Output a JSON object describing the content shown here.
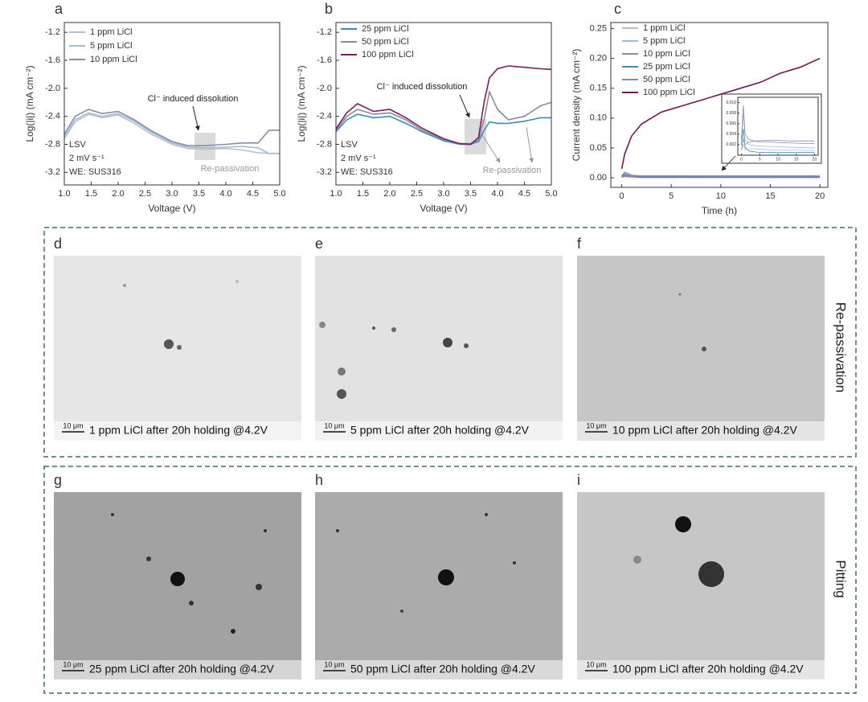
{
  "chart_data": [
    {
      "type": "line",
      "label": "a",
      "xlabel": "Voltage (V)",
      "ylabel": "Log(|i|) (mA cm⁻²)",
      "xlim": [
        1,
        5
      ],
      "xticks": [
        {
          "value": 1,
          "label": "1.0"
        },
        1.5,
        {
          "value": 2,
          "label": "2.0"
        },
        2.5,
        {
          "value": 3,
          "label": "3.0"
        },
        3.5,
        {
          "value": 4,
          "label": "4.0"
        },
        4.5,
        {
          "value": 5,
          "label": "5.0"
        }
      ],
      "ylim": [
        -3.38,
        -1.06
      ],
      "yticks": [
        -3.2,
        -2.8,
        -2.4,
        {
          "value": -2,
          "label": "-2.0"
        },
        -1.6,
        -1.2
      ],
      "annotations": [
        "Cl⁻ induced dissolution",
        "Re-passivation"
      ],
      "notes": [
        "LSV",
        "2 mV s⁻¹",
        "WE: SUS316"
      ],
      "series": [
        {
          "name": "1 ppm LiCl",
          "color": "#b8c2cc",
          "x": [
            1,
            1.2,
            1.45,
            1.7,
            2,
            2.3,
            2.6,
            3,
            3.3,
            3.6,
            4,
            4.3,
            4.6,
            4.8,
            5
          ],
          "values": [
            -2.72,
            -2.48,
            -2.37,
            -2.42,
            -2.38,
            -2.5,
            -2.65,
            -2.8,
            -2.86,
            -2.87,
            -2.86,
            -2.88,
            -2.92,
            -2.93,
            -2.93
          ]
        },
        {
          "name": "5 ppm LiCl",
          "color": "#9fbde0",
          "x": [
            1,
            1.2,
            1.45,
            1.7,
            2,
            2.3,
            2.6,
            3,
            3.3,
            3.6,
            4,
            4.3,
            4.6,
            4.8,
            5
          ],
          "values": [
            -2.7,
            -2.45,
            -2.35,
            -2.4,
            -2.36,
            -2.47,
            -2.62,
            -2.78,
            -2.84,
            -2.85,
            -2.84,
            -2.83,
            -2.85,
            -2.93,
            -2.93
          ]
        },
        {
          "name": "10 ppm LiCl",
          "color": "#8a8ca6",
          "x": [
            1,
            1.2,
            1.45,
            1.7,
            2,
            2.3,
            2.6,
            3,
            3.3,
            3.6,
            4,
            4.3,
            4.6,
            4.8,
            5
          ],
          "values": [
            -2.66,
            -2.4,
            -2.3,
            -2.36,
            -2.33,
            -2.45,
            -2.6,
            -2.76,
            -2.82,
            -2.82,
            -2.8,
            -2.78,
            -2.78,
            -2.6,
            -2.6
          ]
        }
      ]
    },
    {
      "type": "line",
      "label": "b",
      "xlabel": "Voltage (V)",
      "ylabel": "Log(|i|) (mA cm⁻²)",
      "xlim": [
        1,
        5
      ],
      "xticks": [
        {
          "value": 1,
          "label": "1.0"
        },
        1.5,
        {
          "value": 2,
          "label": "2.0"
        },
        2.5,
        {
          "value": 3,
          "label": "3.0"
        },
        3.5,
        {
          "value": 4,
          "label": "4.0"
        },
        4.5,
        {
          "value": 5,
          "label": "5.0"
        }
      ],
      "ylim": [
        -3.38,
        -1.06
      ],
      "yticks": [
        -3.2,
        -2.8,
        -2.4,
        {
          "value": -2,
          "label": "-2.0"
        },
        -1.6,
        -1.2
      ],
      "annotations": [
        "Cl⁻ induced dissolution",
        "Re-passivation"
      ],
      "notes": [
        "LSV",
        "2 mV s⁻¹",
        "WE: SUS316"
      ],
      "series": [
        {
          "name": "25 ppm LiCl",
          "color": "#3a8db0",
          "x": [
            1,
            1.2,
            1.4,
            1.7,
            2,
            2.3,
            2.6,
            3,
            3.3,
            3.5,
            3.65,
            3.75,
            3.85,
            4,
            4.2,
            4.5,
            4.8,
            5
          ],
          "values": [
            -2.62,
            -2.45,
            -2.37,
            -2.42,
            -2.4,
            -2.5,
            -2.62,
            -2.75,
            -2.8,
            -2.8,
            -2.76,
            -2.6,
            -2.48,
            -2.5,
            -2.5,
            -2.47,
            -2.42,
            -2.42
          ]
        },
        {
          "name": "50 ppm LiCl",
          "color": "#8d86a8",
          "x": [
            1,
            1.2,
            1.4,
            1.7,
            2,
            2.3,
            2.6,
            3,
            3.3,
            3.5,
            3.65,
            3.75,
            3.85,
            4,
            4.2,
            4.5,
            4.8,
            5
          ],
          "values": [
            -2.6,
            -2.4,
            -2.3,
            -2.37,
            -2.35,
            -2.45,
            -2.6,
            -2.73,
            -2.79,
            -2.79,
            -2.74,
            -2.45,
            -2.05,
            -2.3,
            -2.45,
            -2.4,
            -2.25,
            -2.2
          ]
        },
        {
          "name": "100 ppm LiCl",
          "color": "#7a1f5c",
          "x": [
            1,
            1.2,
            1.4,
            1.7,
            2,
            2.3,
            2.6,
            3,
            3.3,
            3.5,
            3.65,
            3.75,
            3.85,
            4,
            4.2,
            4.5,
            4.8,
            5
          ],
          "values": [
            -2.58,
            -2.35,
            -2.22,
            -2.33,
            -2.3,
            -2.42,
            -2.57,
            -2.72,
            -2.79,
            -2.8,
            -2.7,
            -2.2,
            -1.85,
            -1.72,
            -1.68,
            -1.7,
            -1.72,
            -1.73
          ]
        }
      ]
    },
    {
      "type": "line",
      "label": "c",
      "xlabel": "Time (h)",
      "ylabel": "Current density (mA cm⁻²)",
      "xlim": [
        -1.1,
        20.8
      ],
      "xticks": [
        0,
        5,
        10,
        15,
        20
      ],
      "ylim": [
        -0.016,
        0.26
      ],
      "yticks": [
        {
          "value": 0,
          "label": "0.00"
        },
        0.05,
        {
          "value": 0.1,
          "label": "0.10"
        },
        0.15,
        {
          "value": 0.2,
          "label": "0.20"
        },
        0.25
      ],
      "series": [
        {
          "name": "1 ppm LiCl",
          "color": "#b8c2cc",
          "x": [
            0,
            0.3,
            1,
            2,
            5,
            10,
            15,
            20
          ],
          "values": [
            0.001,
            0.002,
            0.001,
            0.001,
            0.001,
            0.001,
            0.001,
            0.001
          ]
        },
        {
          "name": "5 ppm LiCl",
          "color": "#9fbde0",
          "x": [
            0,
            0.3,
            1,
            2,
            5,
            10,
            15,
            20
          ],
          "values": [
            0.002,
            0.008,
            0.003,
            0.002,
            0.002,
            0.002,
            0.002,
            0.001
          ]
        },
        {
          "name": "10 ppm LiCl",
          "color": "#8a8ca6",
          "x": [
            0,
            0.3,
            1,
            2,
            5,
            10,
            15,
            20
          ],
          "values": [
            0.003,
            0.009,
            0.004,
            0.003,
            0.003,
            0.002,
            0.002,
            0.002
          ]
        },
        {
          "name": "25 ppm LiCl",
          "color": "#3a8db0",
          "x": [
            0,
            0.3,
            1,
            2,
            5,
            10,
            15,
            20
          ],
          "values": [
            0.002,
            0.005,
            0.002,
            0.001,
            0.001,
            0.001,
            0.001,
            0.001
          ]
        },
        {
          "name": "50 ppm LiCl",
          "color": "#8d86a8",
          "x": [
            0,
            0.3,
            1,
            2,
            5,
            10,
            15,
            20
          ],
          "values": [
            0.001,
            0.003,
            0.002,
            0.003,
            0.003,
            0.003,
            0.003,
            0.003
          ]
        },
        {
          "name": "100 ppm LiCl",
          "color": "#6e1a55",
          "x": [
            0,
            0.3,
            1,
            2,
            3,
            4,
            5,
            6,
            8,
            10,
            12,
            14,
            16,
            18,
            20
          ],
          "values": [
            0.015,
            0.04,
            0.07,
            0.09,
            0.1,
            0.11,
            0.115,
            0.12,
            0.13,
            0.14,
            0.15,
            0.16,
            0.175,
            0.185,
            0.2
          ]
        }
      ]
    },
    {
      "type": "line",
      "xlim": [
        -1,
        21
      ],
      "xticks": [
        0,
        5,
        10,
        15,
        20
      ],
      "ylim": [
        0,
        0.011
      ],
      "yticks": [
        0.002,
        0.004,
        0.006,
        0.008,
        {
          "value": 0.01,
          "label": "0.010"
        }
      ],
      "series": [
        {
          "color": "#b8c2cc",
          "x": [
            0,
            0.5,
            1,
            2,
            4,
            6,
            8,
            10,
            14,
            18,
            20
          ],
          "values": [
            0.001,
            0.002,
            0.001,
            0.0012,
            0.0012,
            0.0011,
            0.001,
            0.001,
            0.001,
            0.0009,
            0.0009
          ]
        },
        {
          "color": "#9fbde0",
          "x": [
            0,
            0.5,
            1,
            2,
            4,
            6,
            8,
            10,
            14,
            18,
            20
          ],
          "values": [
            0.002,
            0.008,
            0.003,
            0.002,
            0.0018,
            0.0017,
            0.0016,
            0.0016,
            0.0015,
            0.0014,
            0.0014
          ]
        },
        {
          "color": "#8a8ca6",
          "x": [
            0,
            0.5,
            1,
            2,
            4,
            6,
            8,
            10,
            14,
            18,
            20
          ],
          "values": [
            0.003,
            0.0095,
            0.004,
            0.003,
            0.0026,
            0.0025,
            0.0025,
            0.0024,
            0.0023,
            0.0022,
            0.0022
          ]
        },
        {
          "color": "#3a8db0",
          "x": [
            0,
            0.5,
            1,
            2,
            4,
            6,
            8,
            10,
            14,
            18,
            20
          ],
          "values": [
            0.002,
            0.005,
            0.0015,
            0.0008,
            0.0006,
            0.0005,
            0.0005,
            0.0005,
            0.0005,
            0.0005,
            0.0005
          ]
        },
        {
          "color": "#8d86a8",
          "x": [
            0,
            0.5,
            1,
            2,
            4,
            6,
            8,
            10,
            14,
            18,
            20
          ],
          "values": [
            0.001,
            0.003,
            0.002,
            0.0025,
            0.0027,
            0.0028,
            0.0028,
            0.0028,
            0.0027,
            0.0027,
            0.0027
          ]
        }
      ]
    }
  ],
  "panels": [
    {
      "letter": "d",
      "scale": "10 μm",
      "caption": "1 ppm LiCl after 20h holding @4.2V"
    },
    {
      "letter": "e",
      "scale": "10 μm",
      "caption": "5 ppm LiCl after 20h holding @4.2V"
    },
    {
      "letter": "f",
      "scale": "10 μm",
      "caption": "10 ppm LiCl after 20h holding @4.2V"
    },
    {
      "letter": "g",
      "scale": "10 μm",
      "caption": "25 ppm LiCl after 20h holding @4.2V"
    },
    {
      "letter": "h",
      "scale": "10 μm",
      "caption": "50 ppm LiCl after 20h holding @4.2V"
    },
    {
      "letter": "i",
      "scale": "10 μm",
      "caption": "100 ppm LiCl after 20h holding @4.2V"
    }
  ],
  "groups": [
    "Re-passivation",
    "Pitting"
  ]
}
